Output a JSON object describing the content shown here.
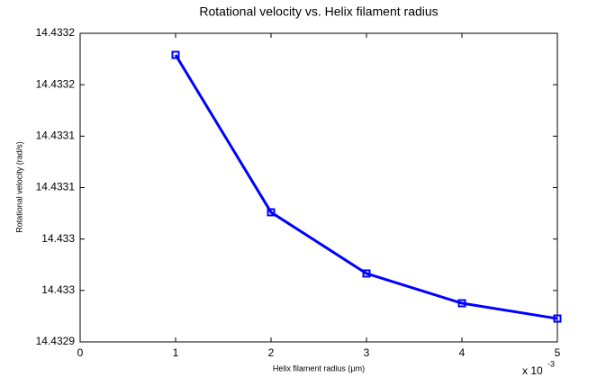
{
  "chart_data": {
    "type": "line",
    "title": "Rotational velocity vs. Helix filament radius",
    "x_label": "Helix filament radius (μm)",
    "y_label": "Rotational velocity (rad/s)",
    "x_multiplier": "x 10",
    "x_exponent": "-3",
    "x": [
      0.001,
      0.002,
      0.003,
      0.004,
      0.005
    ],
    "series": [
      {
        "color": "#0000ff",
        "values": [
          14.433179,
          14.433026,
          14.4329665,
          14.4329376,
          14.4329227
        ]
      }
    ],
    "xlim": [
      0,
      0.005
    ],
    "xticks": [
      {
        "value": 0,
        "label": "0"
      },
      {
        "value": 0.001,
        "label": "1"
      },
      {
        "value": 0.002,
        "label": "2"
      },
      {
        "value": 0.003,
        "label": "3"
      },
      {
        "value": 0.004,
        "label": "4"
      },
      {
        "value": 0.005,
        "label": "5"
      }
    ],
    "ylim": [
      14.4329,
      14.4332
    ],
    "yticks": [
      14.4329,
      {
        "value": 14.43295,
        "label": "14.433"
      },
      {
        "value": 14.433,
        "label": "14.433"
      },
      {
        "value": 14.43305,
        "label": "14.4331"
      },
      14.4331,
      {
        "value": 14.43315,
        "label": "14.4332"
      },
      14.4332
    ],
    "grid": false,
    "marker": "square"
  }
}
